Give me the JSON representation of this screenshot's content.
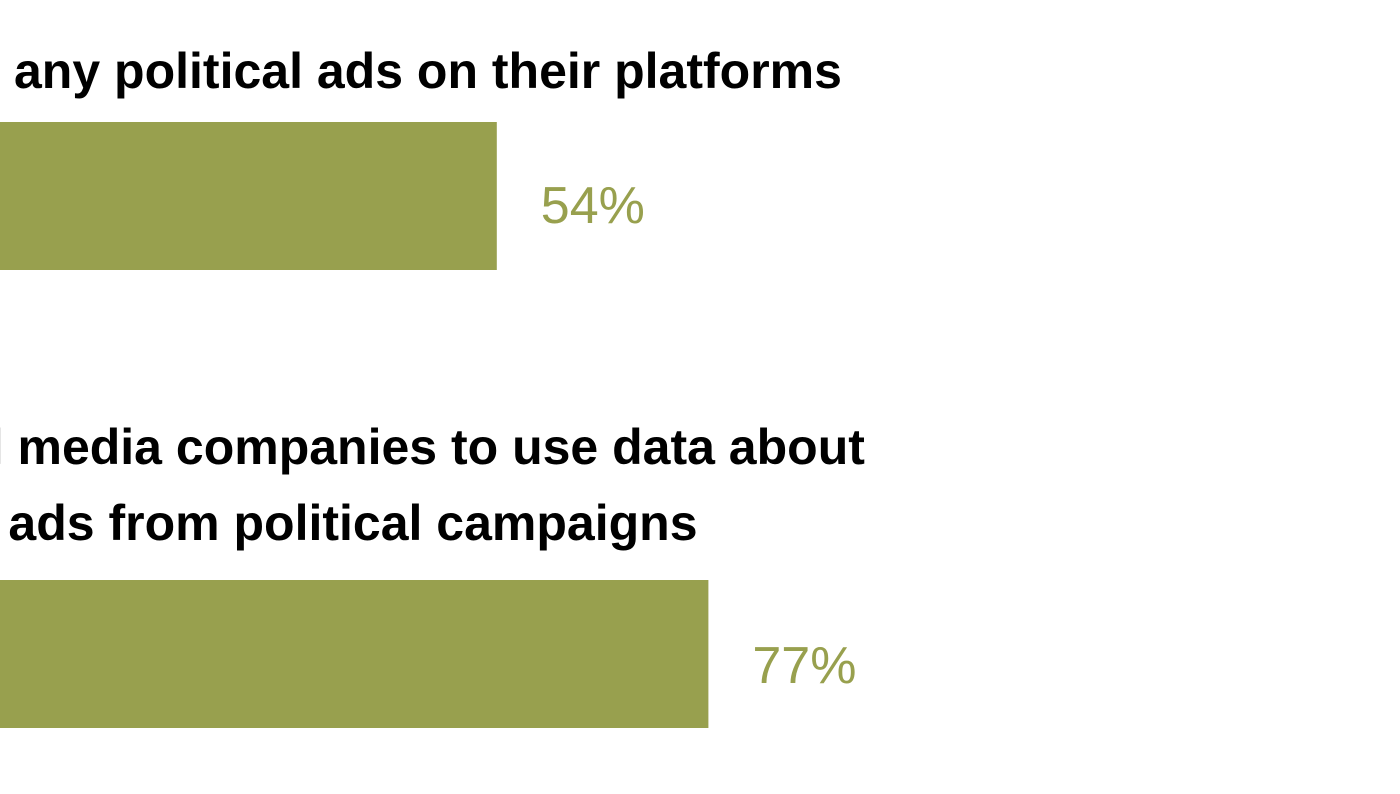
{
  "chart_data": {
    "type": "bar",
    "orientation": "horizontal",
    "bar_color": "#98A04E",
    "value_color": "#98A04E",
    "label_color": "#000000",
    "value_suffix": "%",
    "xlim": [
      0,
      100
    ],
    "items": [
      {
        "label_lines": [
          "any political ads on their platforms"
        ],
        "value": 54,
        "value_label": "54%"
      },
      {
        "label_lines": [
          "ial media companies to use data about",
          "n ads from political campaigns"
        ],
        "value": 77,
        "value_label": "77%"
      }
    ]
  }
}
